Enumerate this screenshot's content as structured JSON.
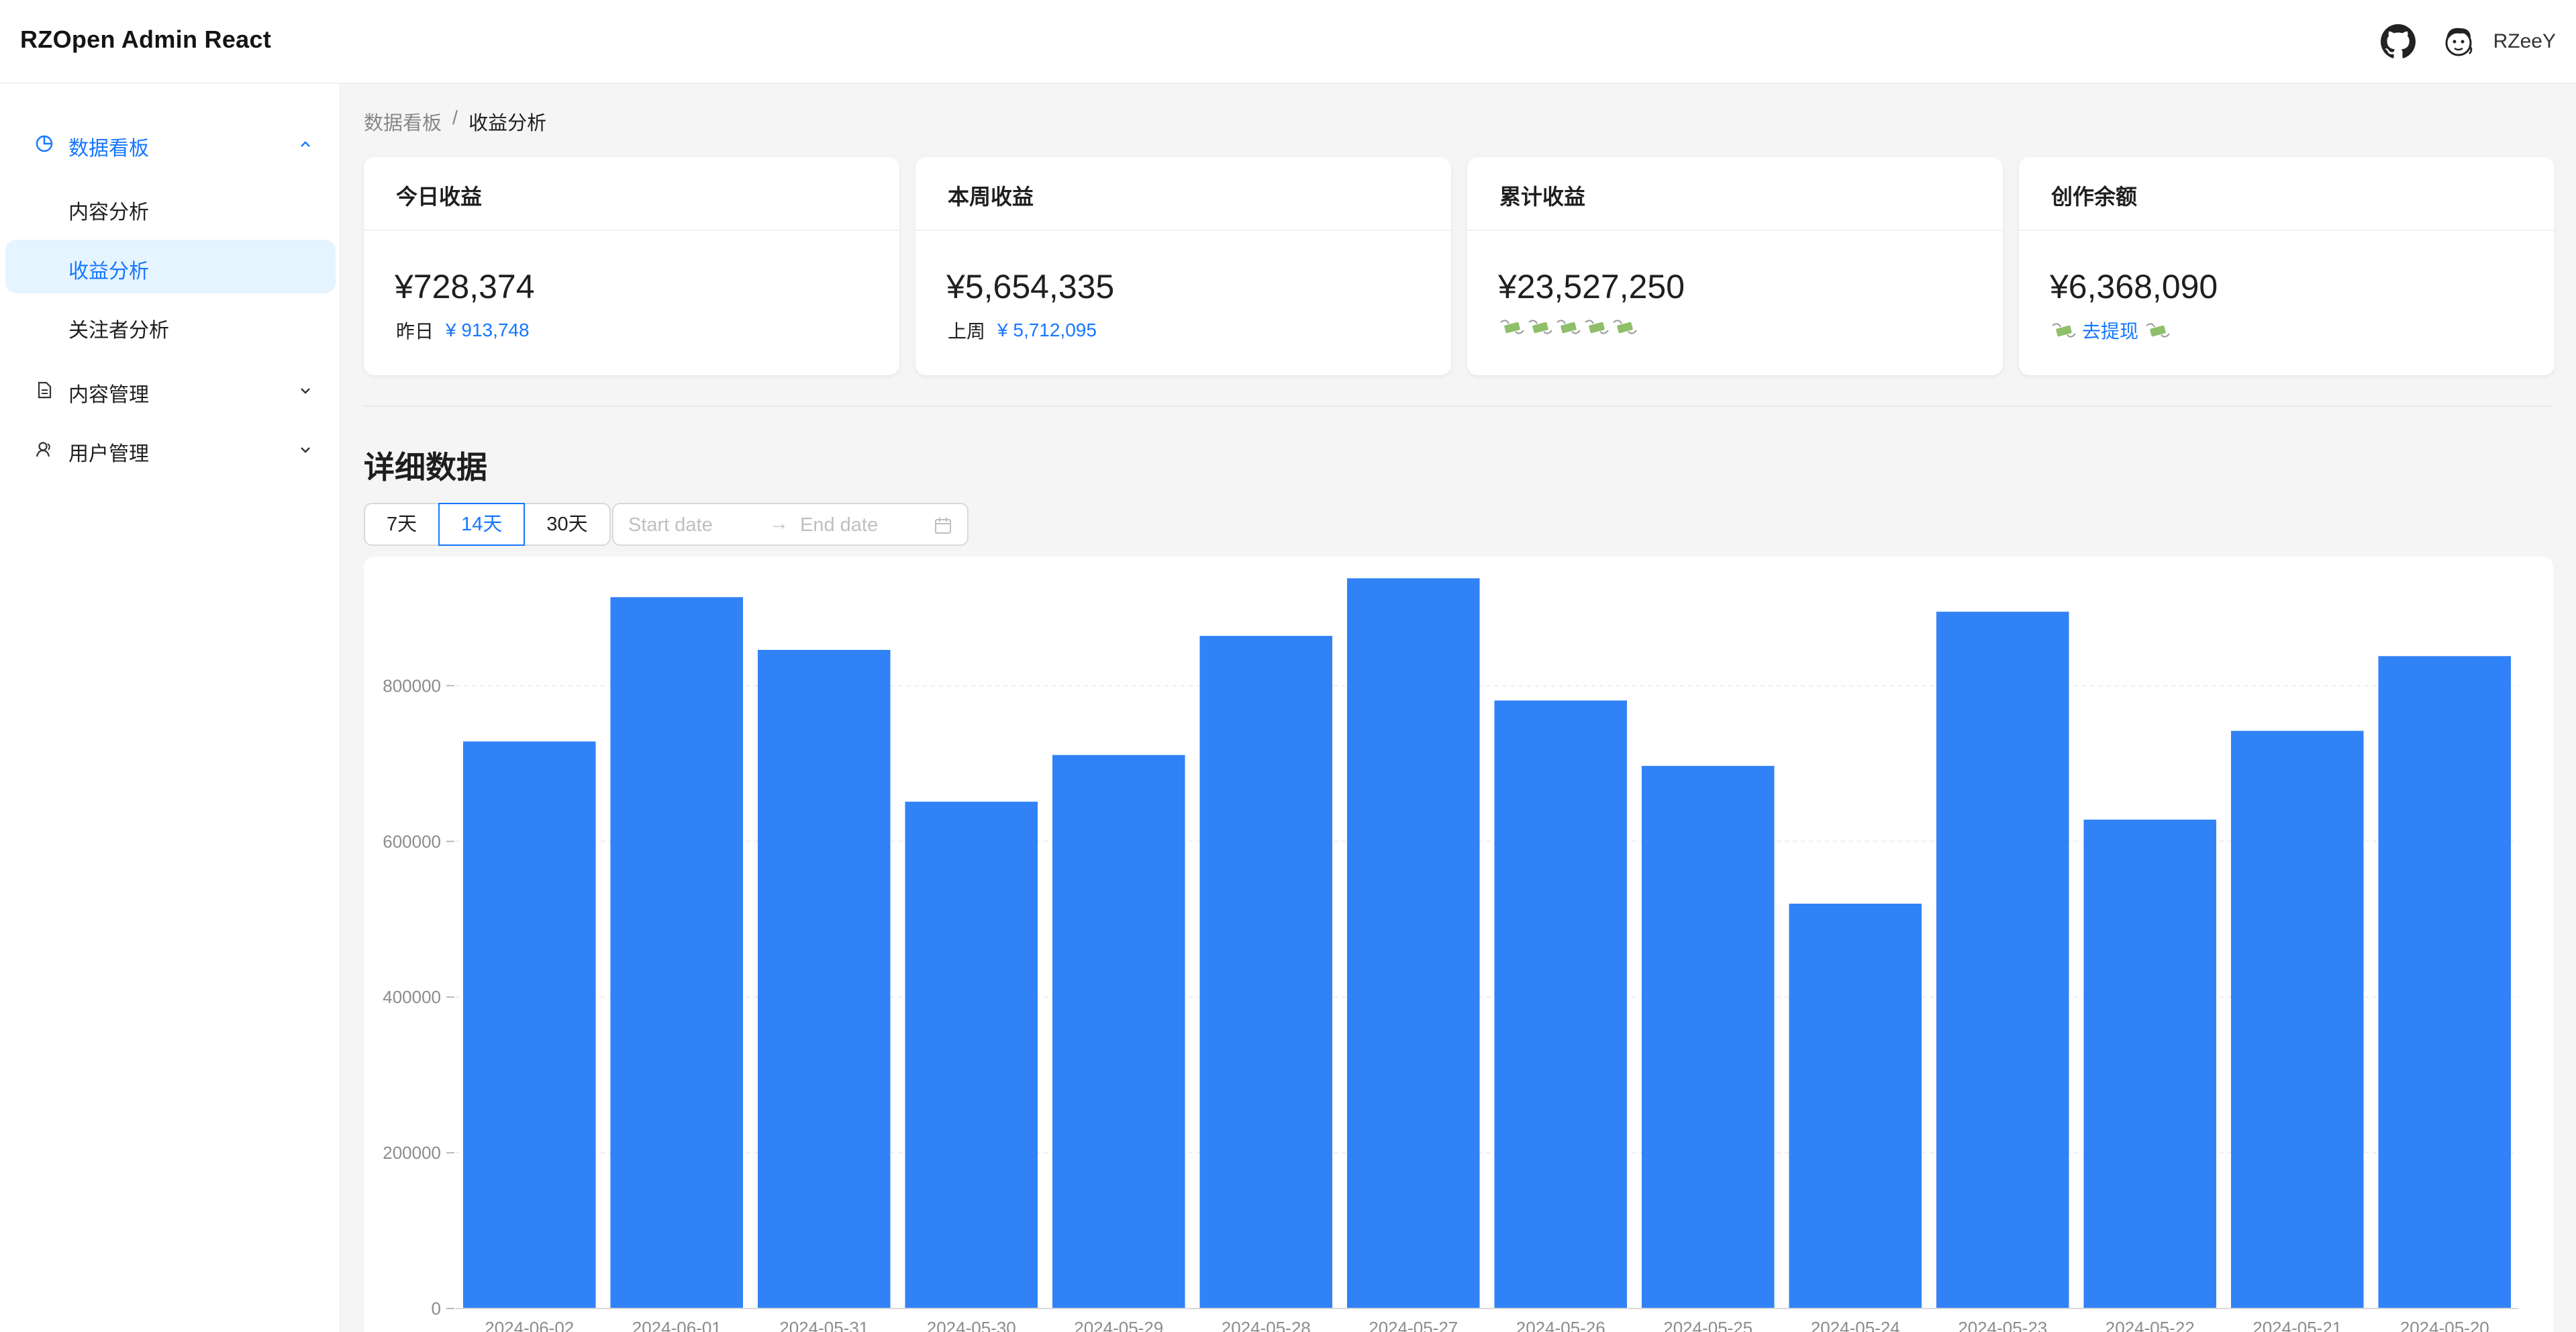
{
  "header": {
    "logo": "RZOpen Admin React",
    "username": "RZeeY",
    "icons": [
      "github-icon",
      "avatar"
    ]
  },
  "sidebar": {
    "groups": [
      {
        "label": "数据看板",
        "icon": "pie-chart-icon",
        "open": true,
        "children": [
          "内容分析",
          "收益分析",
          "关注者分析"
        ],
        "active_child": "收益分析"
      },
      {
        "label": "内容管理",
        "icon": "file-icon",
        "open": false
      },
      {
        "label": "用户管理",
        "icon": "user-icon",
        "open": false
      }
    ]
  },
  "breadcrumb": {
    "parent": "数据看板",
    "separator": "/",
    "current": "收益分析"
  },
  "stats": [
    {
      "title": "今日收益",
      "value": "¥728,374",
      "sub_label": "昨日",
      "sub_value": "¥ 913,748"
    },
    {
      "title": "本周收益",
      "value": "¥5,654,335",
      "sub_label": "上周",
      "sub_value": "¥ 5,712,095"
    },
    {
      "title": "累计收益",
      "value": "¥23,527,250",
      "sub_icons": "money-with-wings-icon x5"
    },
    {
      "title": "创作余额",
      "value": "¥6,368,090",
      "withdraw_label": "去提现"
    }
  ],
  "detail": {
    "title": "详细数据",
    "ranges": [
      "7天",
      "14天",
      "30天"
    ],
    "selected_range": "14天",
    "date_picker": {
      "start_placeholder": "Start date",
      "arrow": "→",
      "end_placeholder": "End date"
    }
  },
  "colors": {
    "accent": "#1677ff",
    "bar": "#3182f6",
    "active_bg": "#e6f4ff"
  },
  "chart_data": {
    "type": "bar",
    "categories": [
      "2024-06-02",
      "2024-06-01",
      "2024-05-31",
      "2024-05-30",
      "2024-05-29",
      "2024-05-28",
      "2024-05-27",
      "2024-05-26",
      "2024-05-25",
      "2024-05-24",
      "2024-05-23",
      "2024-05-22",
      "2024-05-21",
      "2024-05-20"
    ],
    "values": [
      728374,
      913748,
      846000,
      651000,
      711000,
      864000,
      938000,
      781000,
      697000,
      520000,
      895000,
      628000,
      742000,
      838000
    ],
    "yticks": [
      "0",
      "200000",
      "400000",
      "600000",
      "800000"
    ],
    "ylim": [
      0,
      940000
    ],
    "grid": true,
    "legend": false
  }
}
